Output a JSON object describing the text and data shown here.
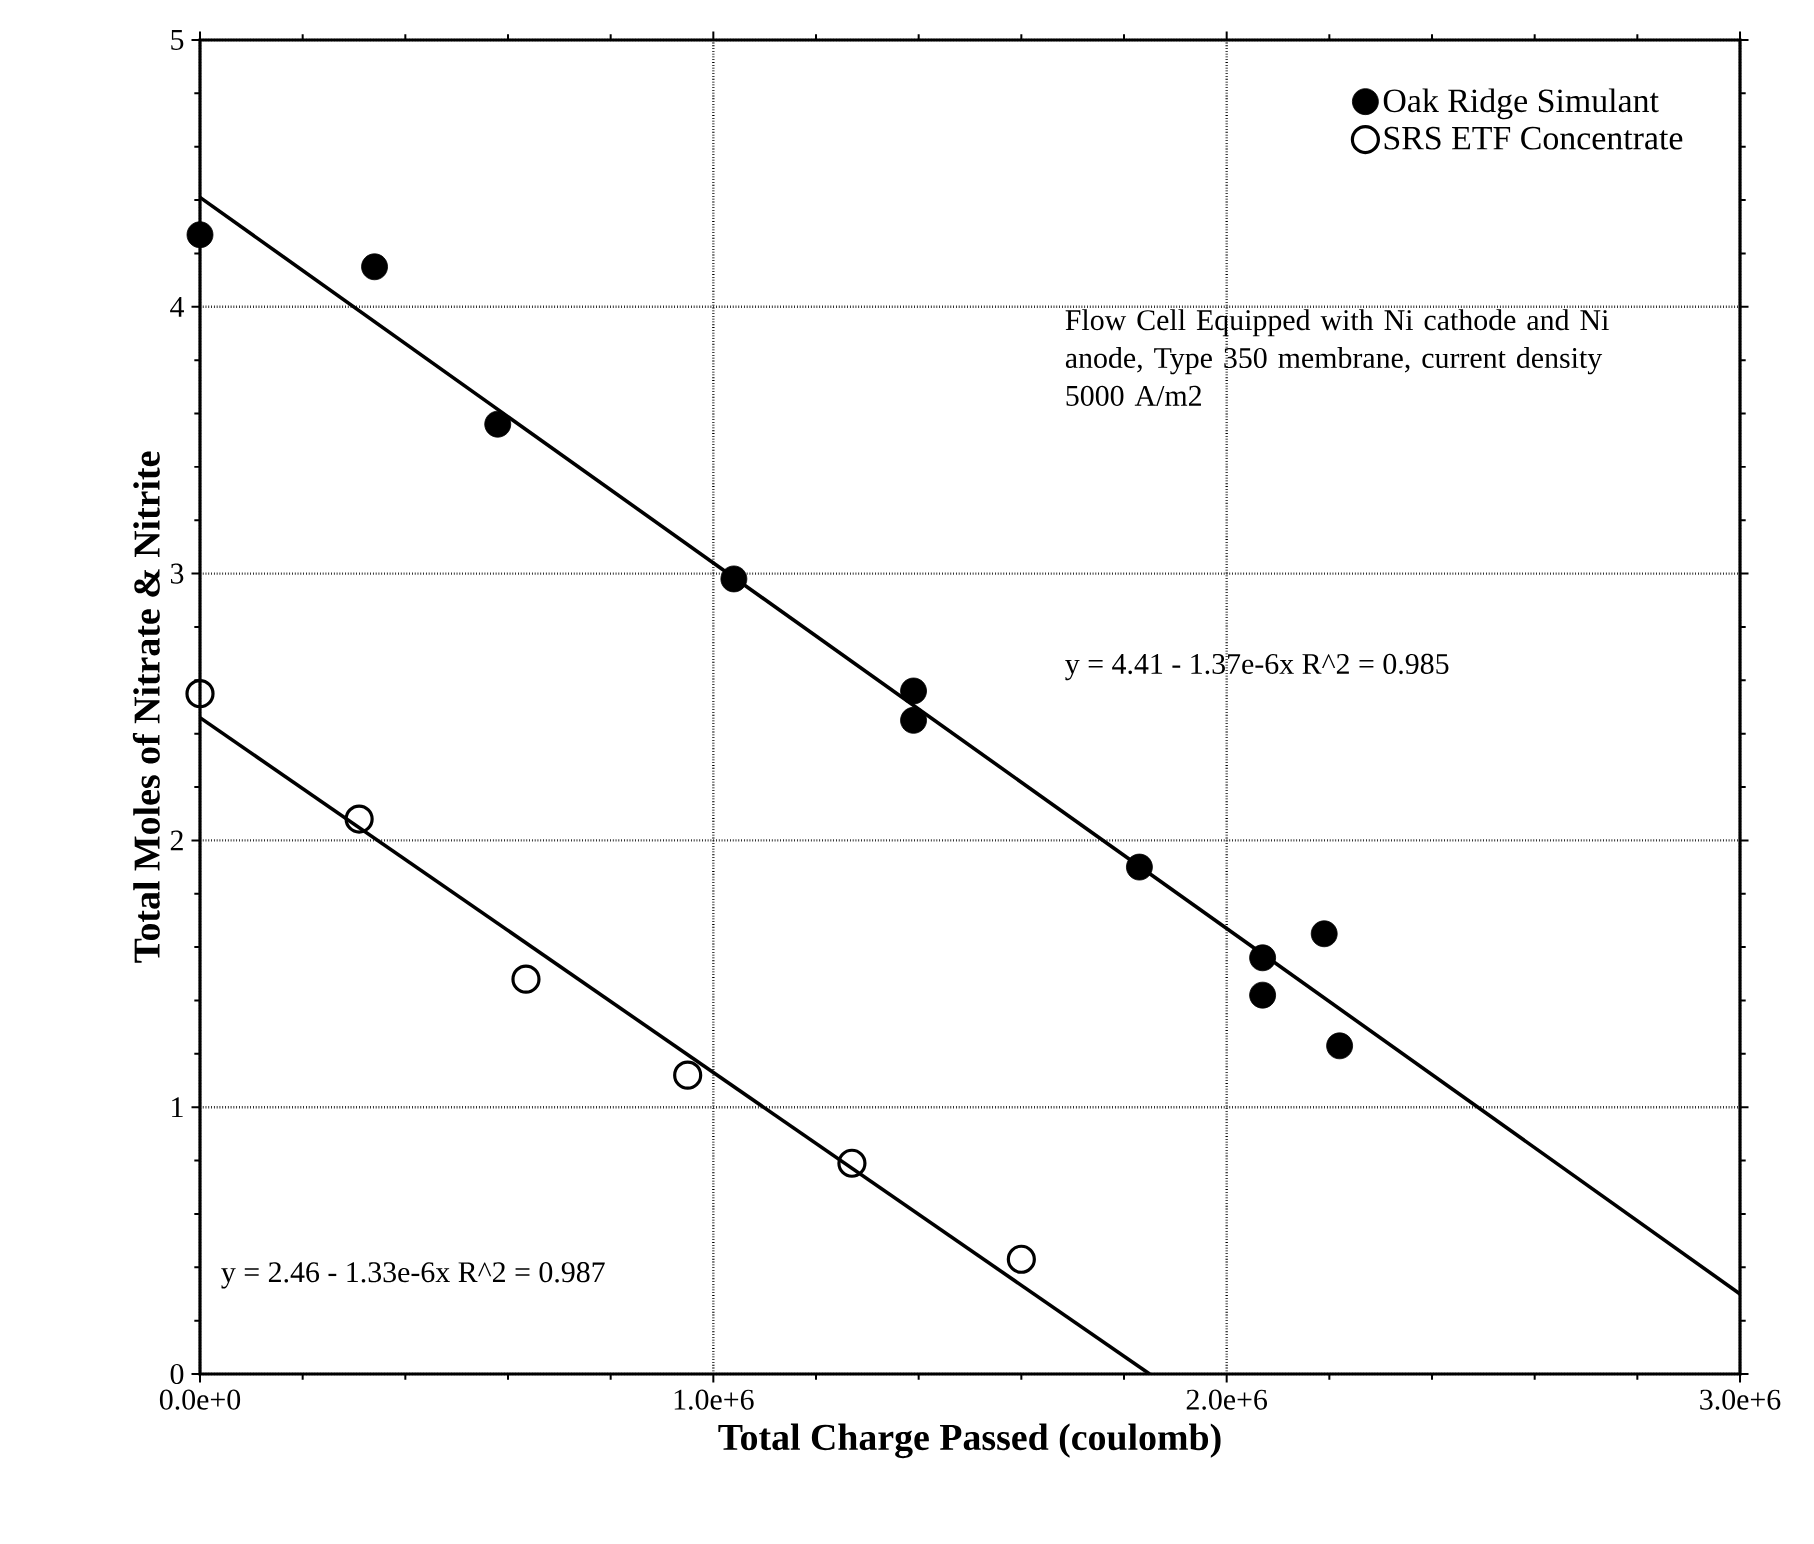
{
  "chart_data": {
    "type": "scatter",
    "xlabel": "Total Charge Passed (coulomb)",
    "ylabel": "Total Moles of Nitrate & Nitrite",
    "xlim": [
      0,
      3000000
    ],
    "ylim": [
      0,
      5
    ],
    "xticks": [
      {
        "value": 0,
        "label": "0.0e+0"
      },
      {
        "value": 1000000,
        "label": "1.0e+6"
      },
      {
        "value": 2000000,
        "label": "2.0e+6"
      },
      {
        "value": 3000000,
        "label": "3.0e+6"
      }
    ],
    "yticks": [
      0,
      1,
      2,
      3,
      4,
      5
    ],
    "grid": true,
    "legend": "top right",
    "marker": "circle",
    "series": [
      {
        "type": "line",
        "marker": "none",
        "color": "#000000",
        "x": [
          0,
          3000000
        ],
        "values": [
          4.41,
          0.3
        ]
      },
      {
        "type": "line",
        "marker": "none",
        "color": "#000000",
        "x": [
          0,
          1850000
        ],
        "values": [
          2.46,
          0
        ]
      },
      {
        "name": "Oak Ridge Simulant",
        "color": "#000000",
        "x": [
          0,
          340000,
          580000,
          1040000,
          1390000,
          1390000,
          1830000,
          2070000,
          2070000,
          2190000,
          2220000
        ],
        "values": [
          4.27,
          4.15,
          3.56,
          2.98,
          2.56,
          2.45,
          1.9,
          1.56,
          1.42,
          1.65,
          1.23
        ]
      },
      {
        "name": "SRS ETF Concentrate",
        "color": "#000000",
        "x": [
          0,
          310000,
          635000,
          950000,
          1270000,
          1600000
        ],
        "values": [
          2.55,
          2.08,
          1.48,
          1.12,
          0.79,
          0.43
        ]
      }
    ],
    "annotations": [
      "Flow Cell Equipped with Ni cathode and Ni anode, Type 350 membrane, current density 5000 A/m2",
      "y = 4.41 - 1.37e-6x   R^2 = 0.985",
      "y = 2.46 - 1.33e-6x   R^2 = 0.987"
    ]
  }
}
